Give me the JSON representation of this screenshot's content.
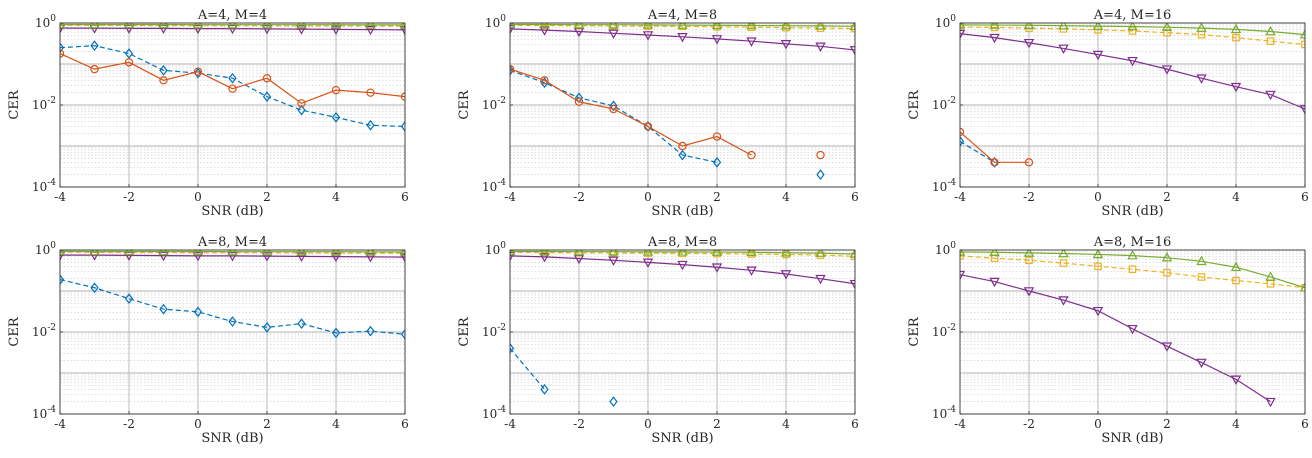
{
  "chart_data": {
    "type": "line",
    "layout": "2x3 grid of subplots",
    "y_scale": "log",
    "grid": "major and minor on",
    "colors": {
      "blue": "#0072BD",
      "orange": "#D95319",
      "yellow": "#EDB120",
      "purple": "#7E2F8E",
      "green": "#77AC30",
      "grid_major": "#b3b3b3",
      "grid_minor": "#d0d0d0"
    },
    "subplots": [
      {
        "title": "A=4, M=4",
        "xlabel": "SNR (dB)",
        "ylabel": "CER",
        "xlim": [
          -4,
          6
        ],
        "ylim": [
          0.0001,
          1
        ],
        "xticks": [
          "-4",
          "-2",
          "0",
          "2",
          "4",
          "6"
        ],
        "yticks": [
          "10-4",
          "10-2",
          "100"
        ],
        "series": [
          {
            "color": "blue",
            "marker": "diamond",
            "dash": true,
            "x": [
              -4,
              -3,
              -2,
              -1,
              0,
              1,
              2,
              3,
              4,
              5,
              6
            ],
            "y": [
              0.25,
              0.28,
              0.18,
              0.07,
              0.06,
              0.045,
              0.016,
              0.0075,
              0.005,
              0.0032,
              0.003
            ]
          },
          {
            "color": "orange",
            "marker": "circle",
            "dash": false,
            "x": [
              -4,
              -3,
              -2,
              -1,
              0,
              1,
              2,
              3,
              4,
              5,
              6
            ],
            "y": [
              0.18,
              0.075,
              0.11,
              0.04,
              0.065,
              0.025,
              0.045,
              0.011,
              0.023,
              0.02,
              0.016
            ]
          },
          {
            "color": "yellow",
            "marker": "square",
            "dash": true,
            "x": [
              -4,
              -3,
              -2,
              -1,
              0,
              1,
              2,
              3,
              4,
              5,
              6
            ],
            "y": [
              0.88,
              0.88,
              0.87,
              0.87,
              0.86,
              0.86,
              0.86,
              0.85,
              0.85,
              0.85,
              0.84
            ]
          },
          {
            "color": "purple",
            "marker": "triangle-down",
            "dash": false,
            "x": [
              -4,
              -3,
              -2,
              -1,
              0,
              1,
              2,
              3,
              4,
              5,
              6
            ],
            "y": [
              0.75,
              0.75,
              0.74,
              0.74,
              0.73,
              0.73,
              0.72,
              0.71,
              0.7,
              0.69,
              0.68
            ]
          },
          {
            "color": "green",
            "marker": "triangle-up",
            "dash": false,
            "x": [
              -4,
              -3,
              -2,
              -1,
              0,
              1,
              2,
              3,
              4,
              5,
              6
            ],
            "y": [
              0.92,
              0.92,
              0.92,
              0.92,
              0.91,
              0.91,
              0.91,
              0.91,
              0.91,
              0.9,
              0.9
            ]
          }
        ]
      },
      {
        "title": "A=4, M=8",
        "xlabel": "SNR (dB)",
        "ylabel": "CER",
        "xlim": [
          -4,
          6
        ],
        "ylim": [
          0.0001,
          1
        ],
        "xticks": [
          "-4",
          "-2",
          "0",
          "2",
          "4",
          "6"
        ],
        "yticks": [
          "10-4",
          "10-2",
          "100"
        ],
        "series": [
          {
            "color": "blue",
            "marker": "diamond",
            "dash": true,
            "x": [
              -4,
              -3,
              -2,
              -1,
              0,
              1,
              2
            ],
            "y": [
              0.07,
              0.035,
              0.015,
              0.0095,
              0.003,
              0.0006,
              0.0004
            ]
          },
          {
            "color": "blue",
            "marker": "diamond",
            "dash": true,
            "x": [
              5
            ],
            "y": [
              0.0002
            ]
          },
          {
            "color": "orange",
            "marker": "circle",
            "dash": false,
            "x": [
              -4,
              -3,
              -2,
              -1,
              0,
              1,
              2,
              3
            ],
            "y": [
              0.075,
              0.04,
              0.012,
              0.008,
              0.003,
              0.001,
              0.0017,
              0.0006
            ]
          },
          {
            "color": "orange",
            "marker": "circle",
            "dash": false,
            "x": [
              5
            ],
            "y": [
              0.0006
            ]
          },
          {
            "color": "yellow",
            "marker": "square",
            "dash": true,
            "x": [
              -4,
              -3,
              -2,
              -1,
              0,
              1,
              2,
              3,
              4,
              5,
              6
            ],
            "y": [
              0.88,
              0.87,
              0.86,
              0.85,
              0.84,
              0.83,
              0.81,
              0.79,
              0.77,
              0.75,
              0.73
            ]
          },
          {
            "color": "purple",
            "marker": "triangle-down",
            "dash": false,
            "x": [
              -4,
              -3,
              -2,
              -1,
              0,
              1,
              2,
              3,
              4,
              5,
              6
            ],
            "y": [
              0.72,
              0.67,
              0.62,
              0.56,
              0.51,
              0.46,
              0.41,
              0.36,
              0.31,
              0.27,
              0.22
            ]
          },
          {
            "color": "green",
            "marker": "triangle-up",
            "dash": false,
            "x": [
              -4,
              -3,
              -2,
              -1,
              0,
              1,
              2,
              3,
              4,
              5,
              6
            ],
            "y": [
              0.92,
              0.92,
              0.91,
              0.91,
              0.9,
              0.89,
              0.88,
              0.87,
              0.86,
              0.85,
              0.83
            ]
          }
        ]
      },
      {
        "title": "A=4, M=16",
        "xlabel": "SNR (dB)",
        "ylabel": "CER",
        "xlim": [
          -4,
          6
        ],
        "ylim": [
          0.0001,
          1
        ],
        "xticks": [
          "-4",
          "-2",
          "0",
          "2",
          "4",
          "6"
        ],
        "yticks": [
          "10-4",
          "10-2",
          "100"
        ],
        "series": [
          {
            "color": "blue",
            "marker": "diamond",
            "dash": true,
            "x": [
              -4,
              -3
            ],
            "y": [
              0.0013,
              0.0004
            ]
          },
          {
            "color": "orange",
            "marker": "circle",
            "dash": false,
            "x": [
              -4,
              -3,
              -2
            ],
            "y": [
              0.0022,
              0.0004,
              0.0004
            ]
          },
          {
            "color": "yellow",
            "marker": "square",
            "dash": true,
            "x": [
              -4,
              -3,
              -2,
              -1,
              0,
              1,
              2,
              3,
              4,
              5,
              6
            ],
            "y": [
              0.8,
              0.78,
              0.75,
              0.72,
              0.68,
              0.64,
              0.58,
              0.52,
              0.44,
              0.36,
              0.3
            ]
          },
          {
            "color": "purple",
            "marker": "triangle-down",
            "dash": false,
            "x": [
              -4,
              -3,
              -2,
              -1,
              0,
              1,
              2,
              3,
              4,
              5,
              6
            ],
            "y": [
              0.55,
              0.44,
              0.33,
              0.24,
              0.17,
              0.12,
              0.075,
              0.045,
              0.028,
              0.018,
              0.008
            ]
          },
          {
            "color": "green",
            "marker": "triangle-up",
            "dash": false,
            "x": [
              -4,
              -3,
              -2,
              -1,
              0,
              1,
              2,
              3,
              4,
              5,
              6
            ],
            "y": [
              0.9,
              0.89,
              0.88,
              0.86,
              0.84,
              0.82,
              0.79,
              0.75,
              0.7,
              0.62,
              0.52
            ]
          }
        ]
      },
      {
        "title": "A=8, M=4",
        "xlabel": "SNR (dB)",
        "ylabel": "CER",
        "xlim": [
          -4,
          6
        ],
        "ylim": [
          0.0001,
          1
        ],
        "xticks": [
          "-4",
          "-2",
          "0",
          "2",
          "4",
          "6"
        ],
        "yticks": [
          "10-4",
          "10-2",
          "100"
        ],
        "series": [
          {
            "color": "blue",
            "marker": "diamond",
            "dash": true,
            "x": [
              -4,
              -3,
              -2,
              -1,
              0,
              1,
              2,
              3,
              4,
              5,
              6
            ],
            "y": [
              0.19,
              0.12,
              0.065,
              0.036,
              0.031,
              0.018,
              0.013,
              0.016,
              0.0095,
              0.0105,
              0.0088
            ]
          },
          {
            "color": "yellow",
            "marker": "square",
            "dash": true,
            "x": [
              -4,
              -3,
              -2,
              -1,
              0,
              1,
              2,
              3,
              4,
              5,
              6
            ],
            "y": [
              0.88,
              0.88,
              0.87,
              0.87,
              0.86,
              0.86,
              0.86,
              0.85,
              0.85,
              0.84,
              0.84
            ]
          },
          {
            "color": "purple",
            "marker": "triangle-down",
            "dash": false,
            "x": [
              -4,
              -3,
              -2,
              -1,
              0,
              1,
              2,
              3,
              4,
              5,
              6
            ],
            "y": [
              0.75,
              0.75,
              0.74,
              0.73,
              0.72,
              0.72,
              0.71,
              0.7,
              0.69,
              0.68,
              0.67
            ]
          },
          {
            "color": "green",
            "marker": "triangle-up",
            "dash": false,
            "x": [
              -4,
              -3,
              -2,
              -1,
              0,
              1,
              2,
              3,
              4,
              5,
              6
            ],
            "y": [
              0.93,
              0.92,
              0.92,
              0.92,
              0.92,
              0.91,
              0.91,
              0.91,
              0.91,
              0.9,
              0.9
            ]
          }
        ]
      },
      {
        "title": "A=8, M=8",
        "xlabel": "SNR (dB)",
        "ylabel": "CER",
        "xlim": [
          -4,
          6
        ],
        "ylim": [
          0.0001,
          1
        ],
        "xticks": [
          "-4",
          "-2",
          "0",
          "2",
          "4",
          "6"
        ],
        "yticks": [
          "10-4",
          "10-2",
          "100"
        ],
        "series": [
          {
            "color": "blue",
            "marker": "diamond",
            "dash": true,
            "x": [
              -4,
              -3
            ],
            "y": [
              0.004,
              0.0004
            ]
          },
          {
            "color": "blue",
            "marker": "diamond",
            "dash": true,
            "x": [
              -1
            ],
            "y": [
              0.0002
            ]
          },
          {
            "color": "yellow",
            "marker": "square",
            "dash": true,
            "x": [
              -4,
              -3,
              -2,
              -1,
              0,
              1,
              2,
              3,
              4,
              5,
              6
            ],
            "y": [
              0.88,
              0.87,
              0.86,
              0.85,
              0.84,
              0.83,
              0.82,
              0.8,
              0.78,
              0.75,
              0.7
            ]
          },
          {
            "color": "purple",
            "marker": "triangle-down",
            "dash": false,
            "x": [
              -4,
              -3,
              -2,
              -1,
              0,
              1,
              2,
              3,
              4,
              5,
              6
            ],
            "y": [
              0.72,
              0.68,
              0.62,
              0.56,
              0.5,
              0.44,
              0.38,
              0.32,
              0.26,
              0.2,
              0.15
            ]
          },
          {
            "color": "green",
            "marker": "triangle-up",
            "dash": false,
            "x": [
              -4,
              -3,
              -2,
              -1,
              0,
              1,
              2,
              3,
              4,
              5,
              6
            ],
            "y": [
              0.92,
              0.92,
              0.91,
              0.91,
              0.9,
              0.9,
              0.89,
              0.88,
              0.86,
              0.84,
              0.8
            ]
          }
        ]
      },
      {
        "title": "A=8, M=16",
        "xlabel": "SNR (dB)",
        "ylabel": "CER",
        "xlim": [
          -4,
          6
        ],
        "ylim": [
          0.0001,
          1
        ],
        "xticks": [
          "-4",
          "-2",
          "0",
          "2",
          "4",
          "6"
        ],
        "yticks": [
          "10-4",
          "10-2",
          "100"
        ],
        "series": [
          {
            "color": "yellow",
            "marker": "square",
            "dash": true,
            "x": [
              -4,
              -3,
              -2,
              -1,
              0,
              1,
              2,
              3,
              4,
              5,
              6
            ],
            "y": [
              0.72,
              0.63,
              0.56,
              0.48,
              0.4,
              0.34,
              0.28,
              0.22,
              0.18,
              0.15,
              0.12
            ]
          },
          {
            "color": "purple",
            "marker": "triangle-down",
            "dash": false,
            "x": [
              -4,
              -3,
              -2,
              -1,
              0,
              1,
              2,
              3,
              4,
              5
            ],
            "y": [
              0.25,
              0.17,
              0.1,
              0.06,
              0.033,
              0.012,
              0.0045,
              0.0018,
              0.0007,
              0.0002
            ]
          },
          {
            "color": "green",
            "marker": "triangle-up",
            "dash": false,
            "x": [
              -4,
              -3,
              -2,
              -1,
              0,
              1,
              2,
              3,
              4,
              5,
              6
            ],
            "y": [
              0.9,
              0.88,
              0.85,
              0.82,
              0.78,
              0.73,
              0.65,
              0.53,
              0.38,
              0.22,
              0.12
            ]
          }
        ]
      }
    ]
  }
}
